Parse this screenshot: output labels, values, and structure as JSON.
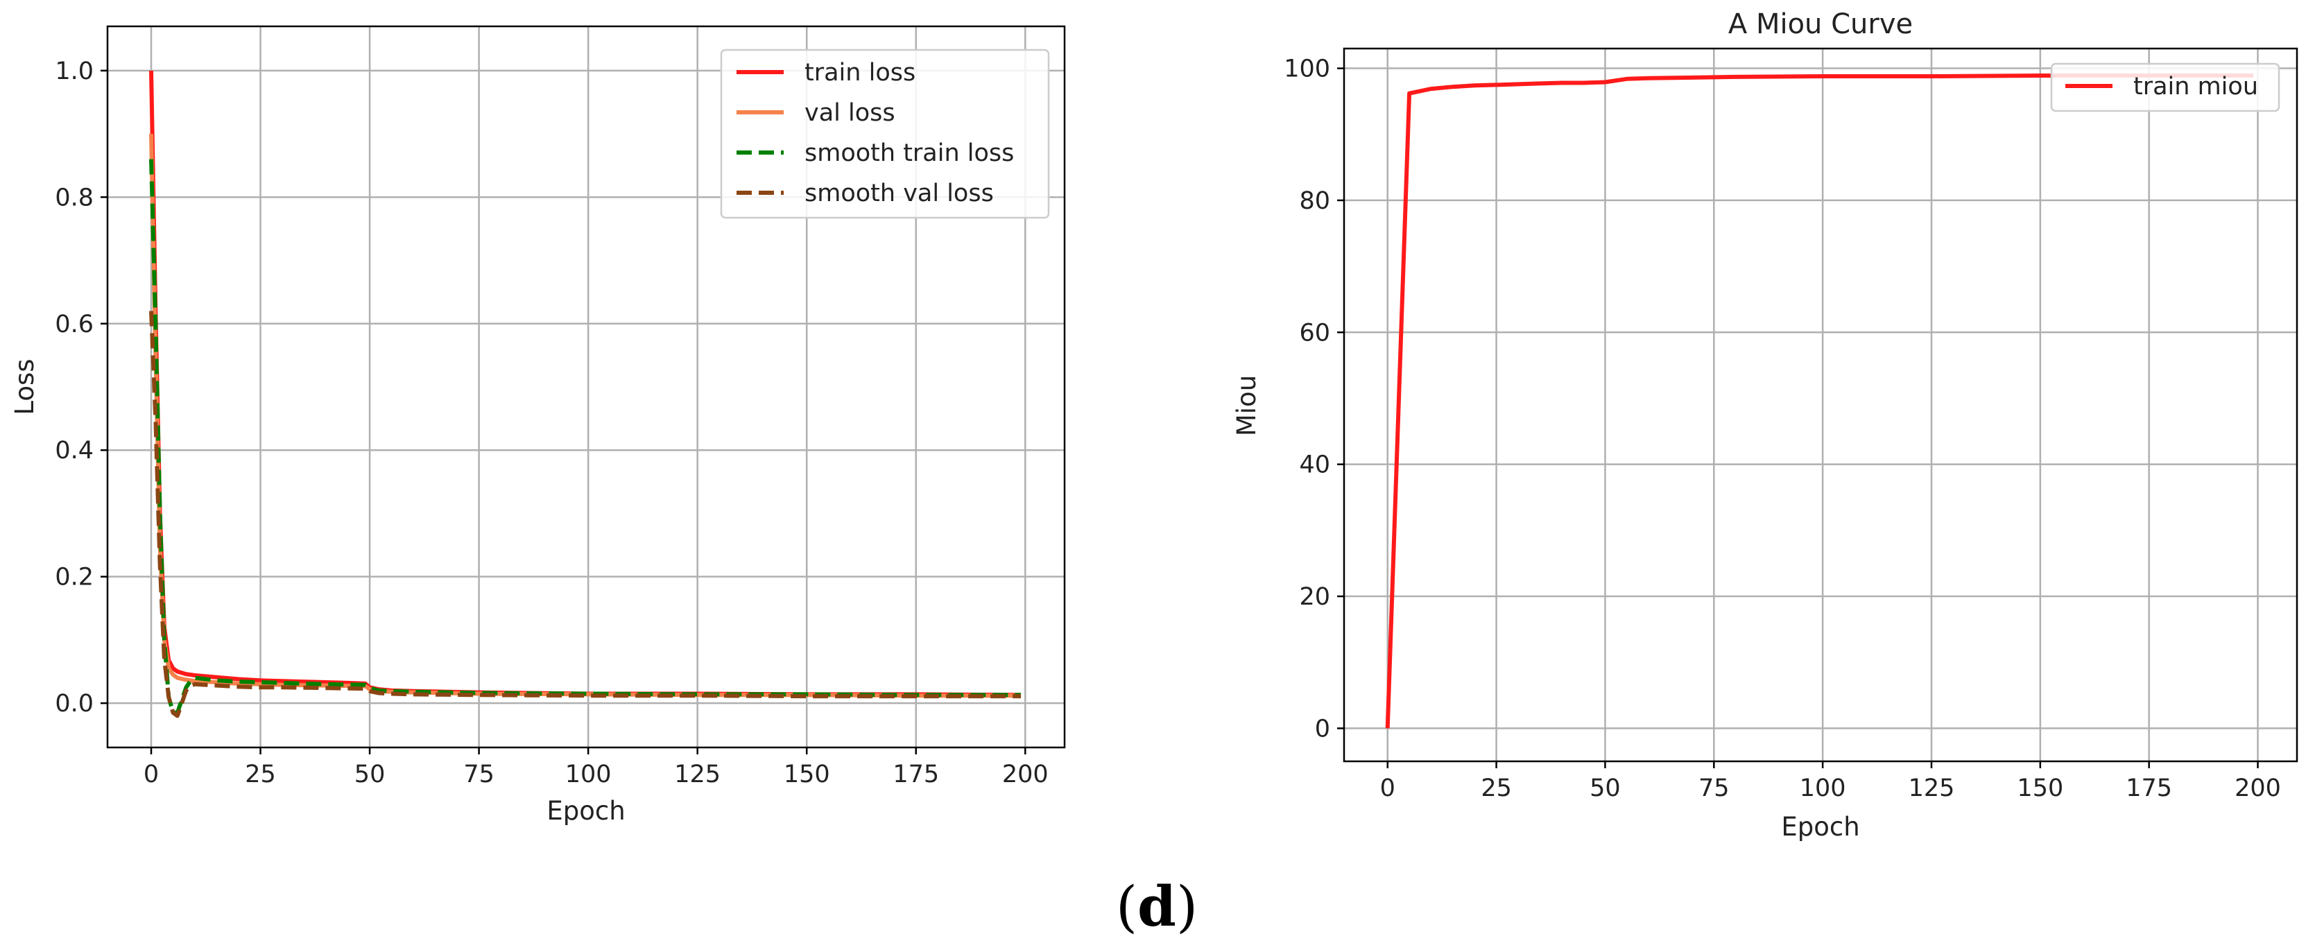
{
  "caption": {
    "open": "(",
    "letter": "d",
    "close": ")"
  },
  "chart_data": [
    {
      "type": "line",
      "title": "",
      "xlabel": "Epoch",
      "ylabel": "Loss",
      "xlim": [
        -10,
        209
      ],
      "ylim": [
        -0.07,
        1.07
      ],
      "xticks": [
        0,
        25,
        50,
        75,
        100,
        125,
        150,
        175,
        200
      ],
      "yticks": [
        0.0,
        0.2,
        0.4,
        0.6,
        0.8,
        1.0
      ],
      "xtick_labels": [
        "0",
        "25",
        "50",
        "75",
        "100",
        "125",
        "150",
        "175",
        "200"
      ],
      "ytick_labels": [
        "0.0",
        "0.2",
        "0.4",
        "0.6",
        "0.8",
        "1.0"
      ],
      "grid": true,
      "legend_position": "top-right",
      "series": [
        {
          "name": "train loss",
          "color": "#ff1a1a",
          "dash": "solid",
          "x": [
            0,
            1,
            2,
            3,
            4,
            5,
            6,
            8,
            10,
            15,
            20,
            25,
            30,
            35,
            40,
            45,
            49,
            50,
            52,
            55,
            60,
            75,
            100,
            125,
            150,
            175,
            199
          ],
          "y": [
            1.0,
            0.62,
            0.3,
            0.12,
            0.068,
            0.055,
            0.05,
            0.046,
            0.044,
            0.041,
            0.038,
            0.036,
            0.035,
            0.034,
            0.033,
            0.032,
            0.031,
            0.025,
            0.022,
            0.02,
            0.019,
            0.017,
            0.015,
            0.015,
            0.014,
            0.014,
            0.013
          ]
        },
        {
          "name": "val loss",
          "color": "#f5824b",
          "dash": "solid",
          "x": [
            0,
            1,
            2,
            3,
            4,
            5,
            6,
            8,
            10,
            15,
            20,
            25,
            30,
            40,
            49,
            50,
            52,
            55,
            60,
            75,
            100,
            125,
            150,
            175,
            199
          ],
          "y": [
            0.9,
            0.55,
            0.25,
            0.1,
            0.055,
            0.045,
            0.04,
            0.037,
            0.035,
            0.033,
            0.031,
            0.03,
            0.029,
            0.028,
            0.027,
            0.022,
            0.019,
            0.018,
            0.017,
            0.015,
            0.014,
            0.013,
            0.013,
            0.012,
            0.012
          ]
        },
        {
          "name": "smooth train loss",
          "color": "#008000",
          "dash": "dashed",
          "x": [
            0,
            1,
            2,
            3,
            4,
            5,
            6,
            7,
            8,
            9,
            10,
            15,
            20,
            25,
            30,
            40,
            49,
            50,
            52,
            55,
            60,
            75,
            100,
            125,
            150,
            175,
            199
          ],
          "y": [
            0.86,
            0.6,
            0.3,
            0.1,
            0.01,
            -0.015,
            -0.015,
            0.005,
            0.025,
            0.035,
            0.04,
            0.036,
            0.034,
            0.033,
            0.032,
            0.03,
            0.029,
            0.024,
            0.02,
            0.019,
            0.018,
            0.016,
            0.015,
            0.014,
            0.014,
            0.013,
            0.013
          ]
        },
        {
          "name": "smooth val loss",
          "color": "#8b4513",
          "dash": "dashed",
          "x": [
            0,
            1,
            2,
            3,
            4,
            5,
            6,
            7,
            8,
            9,
            10,
            15,
            20,
            25,
            30,
            40,
            49,
            50,
            52,
            55,
            60,
            75,
            100,
            125,
            150,
            175,
            199
          ],
          "y": [
            0.62,
            0.45,
            0.22,
            0.07,
            0.01,
            -0.015,
            -0.02,
            0.0,
            0.02,
            0.028,
            0.03,
            0.028,
            0.026,
            0.025,
            0.025,
            0.024,
            0.023,
            0.019,
            0.016,
            0.015,
            0.014,
            0.013,
            0.012,
            0.012,
            0.011,
            0.011,
            0.011
          ]
        }
      ]
    },
    {
      "type": "line",
      "title": "A Miou Curve",
      "xlabel": "Epoch",
      "ylabel": "Miou",
      "xlim": [
        -10,
        209
      ],
      "ylim": [
        -5,
        103
      ],
      "xticks": [
        0,
        25,
        50,
        75,
        100,
        125,
        150,
        175,
        200
      ],
      "yticks": [
        0,
        20,
        40,
        60,
        80,
        100
      ],
      "xtick_labels": [
        "0",
        "25",
        "50",
        "75",
        "100",
        "125",
        "150",
        "175",
        "200"
      ],
      "ytick_labels": [
        "0",
        "20",
        "40",
        "60",
        "80",
        "100"
      ],
      "grid": true,
      "legend_position": "top-right",
      "series": [
        {
          "name": "train miou",
          "color": "#ff1a1a",
          "dash": "solid",
          "x": [
            0,
            5,
            10,
            15,
            20,
            25,
            30,
            35,
            40,
            45,
            50,
            55,
            60,
            70,
            80,
            100,
            125,
            150,
            175,
            199
          ],
          "y": [
            0,
            96.2,
            96.9,
            97.2,
            97.4,
            97.5,
            97.6,
            97.7,
            97.8,
            97.8,
            97.9,
            98.4,
            98.5,
            98.6,
            98.7,
            98.8,
            98.8,
            98.9,
            98.9,
            98.9
          ]
        }
      ]
    }
  ]
}
